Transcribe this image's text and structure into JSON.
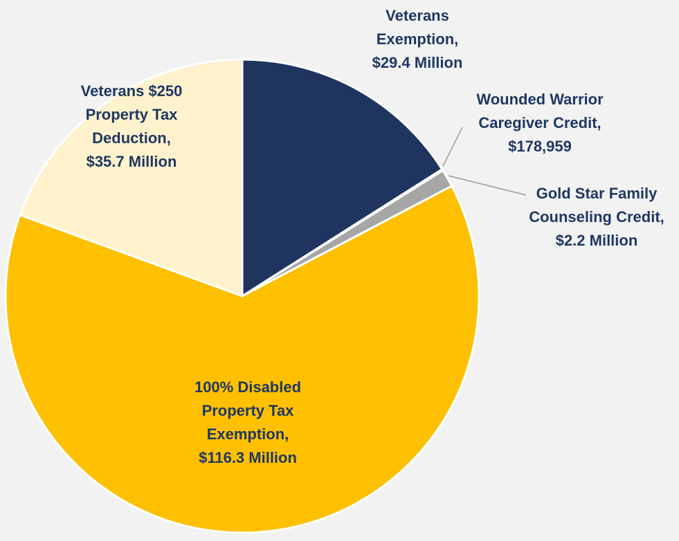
{
  "chart_data": {
    "type": "pie",
    "start_angle_deg": 0,
    "direction": "clockwise",
    "slices": [
      {
        "label": "Veterans Exemption",
        "value": 29.4,
        "unit": "Million",
        "display_lines": [
          "Veterans",
          "Exemption,",
          "$29.4 Million"
        ],
        "color": "#1f3560"
      },
      {
        "label": "Wounded Warrior Caregiver Credit",
        "value": 0.178959,
        "unit": "Million",
        "display_lines": [
          "Wounded Warrior",
          "Caregiver Credit,",
          "$178,959"
        ],
        "color": "#e7e7e7"
      },
      {
        "label": "Gold Star Family Counseling Credit",
        "value": 2.2,
        "unit": "Million",
        "display_lines": [
          "Gold Star Family",
          "Counseling Credit,",
          "$2.2 Million"
        ],
        "color": "#a6a6a6"
      },
      {
        "label": "100% Disabled Property Tax Exemption",
        "value": 116.3,
        "unit": "Million",
        "display_lines": [
          "100% Disabled",
          "Property Tax",
          "Exemption,",
          "$116.3 Million"
        ],
        "color": "#fec000"
      },
      {
        "label": "Veterans $250 Property Tax Deduction",
        "value": 35.7,
        "unit": "Million",
        "display_lines": [
          "Veterans $250",
          "Property Tax",
          "Deduction,",
          "$35.7 Million"
        ],
        "color": "#fff2cc"
      }
    ],
    "label_color": "#1f3763",
    "background": "#f2f2f2"
  }
}
